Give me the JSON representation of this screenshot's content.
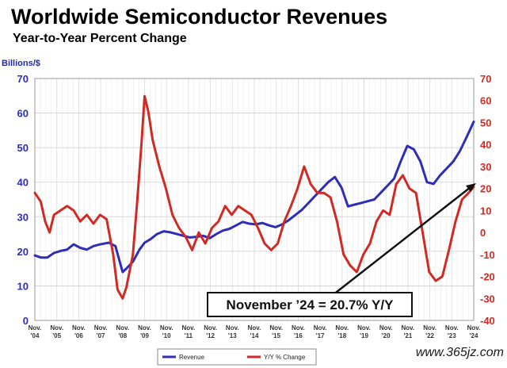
{
  "header": {
    "title": "Worldwide Semiconductor Revenues",
    "subtitle": "Year-to-Year Percent Change",
    "left_unit": "Billions/$"
  },
  "annotation": {
    "text": "November ’24 = 20.7% Y/Y"
  },
  "watermark": {
    "text": "www.365jz.com"
  },
  "legend": {
    "revenue_label": "Revenue",
    "yoy_label": "Y/Y % Change"
  },
  "colors": {
    "revenue": "#2d2db8",
    "yoy": "#d22a22",
    "grid": "#cfcfcf"
  },
  "chart_data": {
    "type": "line",
    "title": "Worldwide Semiconductor Revenues",
    "subtitle": "Year-to-Year Percent Change",
    "x_tick_labels": [
      [
        "Nov.",
        "'04"
      ],
      [
        "Nov.",
        "'05"
      ],
      [
        "Nov.",
        "'06"
      ],
      [
        "Nov.",
        "'07"
      ],
      [
        "Nov.",
        "'08"
      ],
      [
        "Nov.",
        "'09"
      ],
      [
        "Nov.",
        "'10"
      ],
      [
        "Nov.",
        "'11"
      ],
      [
        "Nov.",
        "'12"
      ],
      [
        "Nov.",
        "'13"
      ],
      [
        "Nov.",
        "'14"
      ],
      [
        "Nov.",
        "'15"
      ],
      [
        "Nov.",
        "'16"
      ],
      [
        "Nov.",
        "'17"
      ],
      [
        "Nov.",
        "'18"
      ],
      [
        "Nov.",
        "'19"
      ],
      [
        "Nov.",
        "'20"
      ],
      [
        "Nov.",
        "'21"
      ],
      [
        "Nov.",
        "'22"
      ],
      [
        "Nov.",
        "'23"
      ],
      [
        "Nov.",
        "'24"
      ]
    ],
    "xlim": [
      2004.83,
      2024.83
    ],
    "y_left": {
      "label": "Billions/$",
      "lim": [
        0,
        70
      ],
      "ticks": [
        0,
        10,
        20,
        30,
        40,
        50,
        60,
        70
      ]
    },
    "y_right": {
      "label": "",
      "lim": [
        -40,
        70
      ],
      "ticks": [
        -40,
        -30,
        -20,
        -10,
        0,
        10,
        20,
        30,
        40,
        50,
        60,
        70
      ]
    },
    "grid": true,
    "series": [
      {
        "name": "Revenue",
        "axis": "left",
        "x": [
          2004.83,
          2005.1,
          2005.4,
          2005.7,
          2006.0,
          2006.3,
          2006.6,
          2006.9,
          2007.2,
          2007.5,
          2007.8,
          2008.2,
          2008.5,
          2008.83,
          2009.0,
          2009.3,
          2009.6,
          2009.83,
          2010.1,
          2010.4,
          2010.7,
          2011.0,
          2011.3,
          2011.6,
          2011.9,
          2012.2,
          2012.5,
          2012.8,
          2013.1,
          2013.4,
          2013.7,
          2014.0,
          2014.3,
          2014.6,
          2014.9,
          2015.2,
          2015.5,
          2015.8,
          2016.1,
          2016.4,
          2016.7,
          2017.0,
          2017.3,
          2017.6,
          2017.9,
          2018.2,
          2018.5,
          2018.8,
          2019.1,
          2019.4,
          2019.7,
          2020.0,
          2020.3,
          2020.6,
          2020.9,
          2021.2,
          2021.5,
          2021.8,
          2022.1,
          2022.4,
          2022.7,
          2023.0,
          2023.3,
          2023.6,
          2023.9,
          2024.2,
          2024.5,
          2024.83
        ],
        "y": [
          18.8,
          18.2,
          18.2,
          19.5,
          20.1,
          20.5,
          22,
          21,
          20.5,
          21.5,
          22,
          22.5,
          21.5,
          14,
          15,
          17,
          20.5,
          22.5,
          23.5,
          25,
          25.8,
          25.5,
          25,
          24.5,
          24,
          24.2,
          24.5,
          23.8,
          25,
          26,
          26.5,
          27.5,
          28.5,
          28,
          27.8,
          28.2,
          27.5,
          27,
          27.8,
          29,
          30.5,
          32,
          34,
          36,
          38,
          40,
          41.5,
          38.5,
          33,
          33.5,
          34,
          34.5,
          35,
          37,
          39,
          41,
          46,
          50.5,
          49.5,
          46,
          40,
          39.5,
          42,
          44,
          46,
          49,
          53,
          57.5
        ]
      },
      {
        "name": "Y/Y % Change",
        "axis": "right",
        "x": [
          2004.83,
          2005.1,
          2005.3,
          2005.5,
          2005.7,
          2006.0,
          2006.3,
          2006.6,
          2006.9,
          2007.2,
          2007.5,
          2007.8,
          2008.1,
          2008.4,
          2008.6,
          2008.83,
          2009.0,
          2009.3,
          2009.5,
          2009.7,
          2009.83,
          2010.0,
          2010.2,
          2010.5,
          2010.8,
          2011.1,
          2011.4,
          2011.7,
          2012.0,
          2012.3,
          2012.6,
          2012.9,
          2013.2,
          2013.5,
          2013.8,
          2014.1,
          2014.4,
          2014.7,
          2015.0,
          2015.3,
          2015.6,
          2015.9,
          2016.2,
          2016.5,
          2016.8,
          2017.1,
          2017.4,
          2017.7,
          2018.0,
          2018.3,
          2018.6,
          2018.9,
          2019.2,
          2019.5,
          2019.8,
          2020.1,
          2020.4,
          2020.7,
          2021.0,
          2021.3,
          2021.6,
          2021.9,
          2022.2,
          2022.5,
          2022.8,
          2023.1,
          2023.4,
          2023.7,
          2024.0,
          2024.3,
          2024.6,
          2024.83
        ],
        "y": [
          18,
          14,
          5,
          0,
          8,
          10,
          12,
          10,
          5,
          8,
          4,
          8,
          6,
          -10,
          -26,
          -30,
          -25,
          -10,
          15,
          42,
          62,
          55,
          42,
          30,
          20,
          8,
          2,
          -2,
          -8,
          0,
          -5,
          2,
          5,
          12,
          8,
          12,
          10,
          8,
          2,
          -5,
          -8,
          -5,
          5,
          12,
          20,
          30,
          22,
          18,
          18,
          16,
          5,
          -10,
          -15,
          -18,
          -10,
          -5,
          5,
          10,
          8,
          22,
          26,
          20,
          18,
          0,
          -18,
          -22,
          -20,
          -8,
          5,
          15,
          18,
          20.7
        ]
      }
    ]
  }
}
